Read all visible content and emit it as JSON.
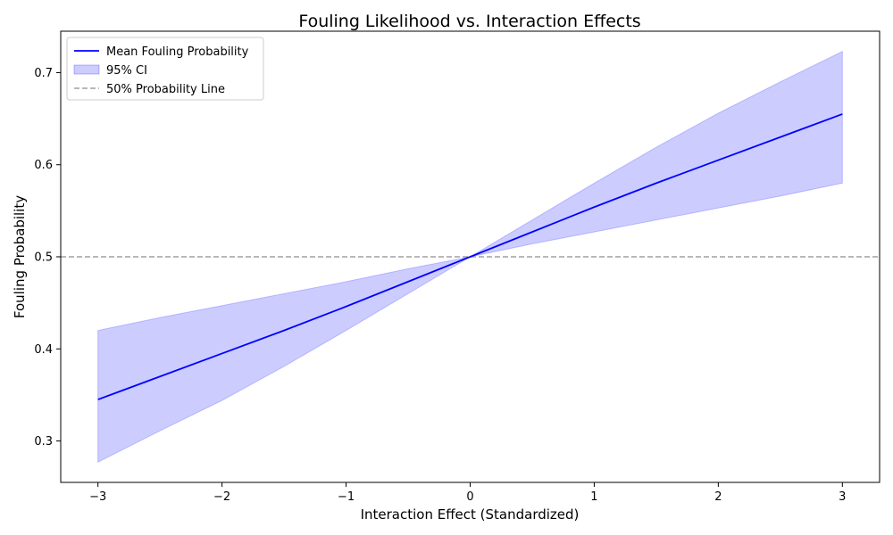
{
  "chart_data": {
    "type": "line",
    "title": "Fouling Likelihood vs. Interaction Effects",
    "xlabel": "Interaction Effect (Standardized)",
    "ylabel": "Fouling Probability",
    "xlim": [
      -3.3,
      3.3
    ],
    "ylim": [
      0.255,
      0.745
    ],
    "xticks": [
      -3,
      -2,
      -1,
      0,
      1,
      2,
      3
    ],
    "xtick_labels": [
      "−3",
      "−2",
      "−1",
      "0",
      "1",
      "2",
      "3"
    ],
    "yticks": [
      0.3,
      0.4,
      0.5,
      0.6,
      0.7
    ],
    "ytick_labels": [
      "0.3",
      "0.4",
      "0.5",
      "0.6",
      "0.7"
    ],
    "grid": false,
    "legend_position": "top-left",
    "series": [
      {
        "name": "Mean Fouling Probability",
        "kind": "line",
        "color": "#0000ff",
        "x": [
          -3,
          -2.5,
          -2,
          -1.5,
          -1,
          -0.5,
          0,
          0.5,
          1,
          1.5,
          2,
          2.5,
          3
        ],
        "y": [
          0.345,
          0.37,
          0.395,
          0.42,
          0.446,
          0.473,
          0.5,
          0.527,
          0.554,
          0.58,
          0.605,
          0.63,
          0.655
        ]
      },
      {
        "name": "95% CI",
        "kind": "band",
        "color": "#0000ff",
        "x": [
          -3,
          -2.5,
          -2,
          -1.5,
          -1,
          -0.5,
          0,
          0.5,
          1,
          1.5,
          2,
          2.5,
          3
        ],
        "lower": [
          0.277,
          0.311,
          0.344,
          0.381,
          0.42,
          0.46,
          0.5,
          0.514,
          0.527,
          0.54,
          0.553,
          0.566,
          0.58
        ],
        "upper": [
          0.42,
          0.434,
          0.447,
          0.46,
          0.473,
          0.487,
          0.5,
          0.54,
          0.58,
          0.619,
          0.656,
          0.69,
          0.723
        ]
      },
      {
        "name": "50% Probability Line",
        "kind": "hline",
        "color": "#a0a0a0",
        "y": 0.5
      }
    ]
  }
}
